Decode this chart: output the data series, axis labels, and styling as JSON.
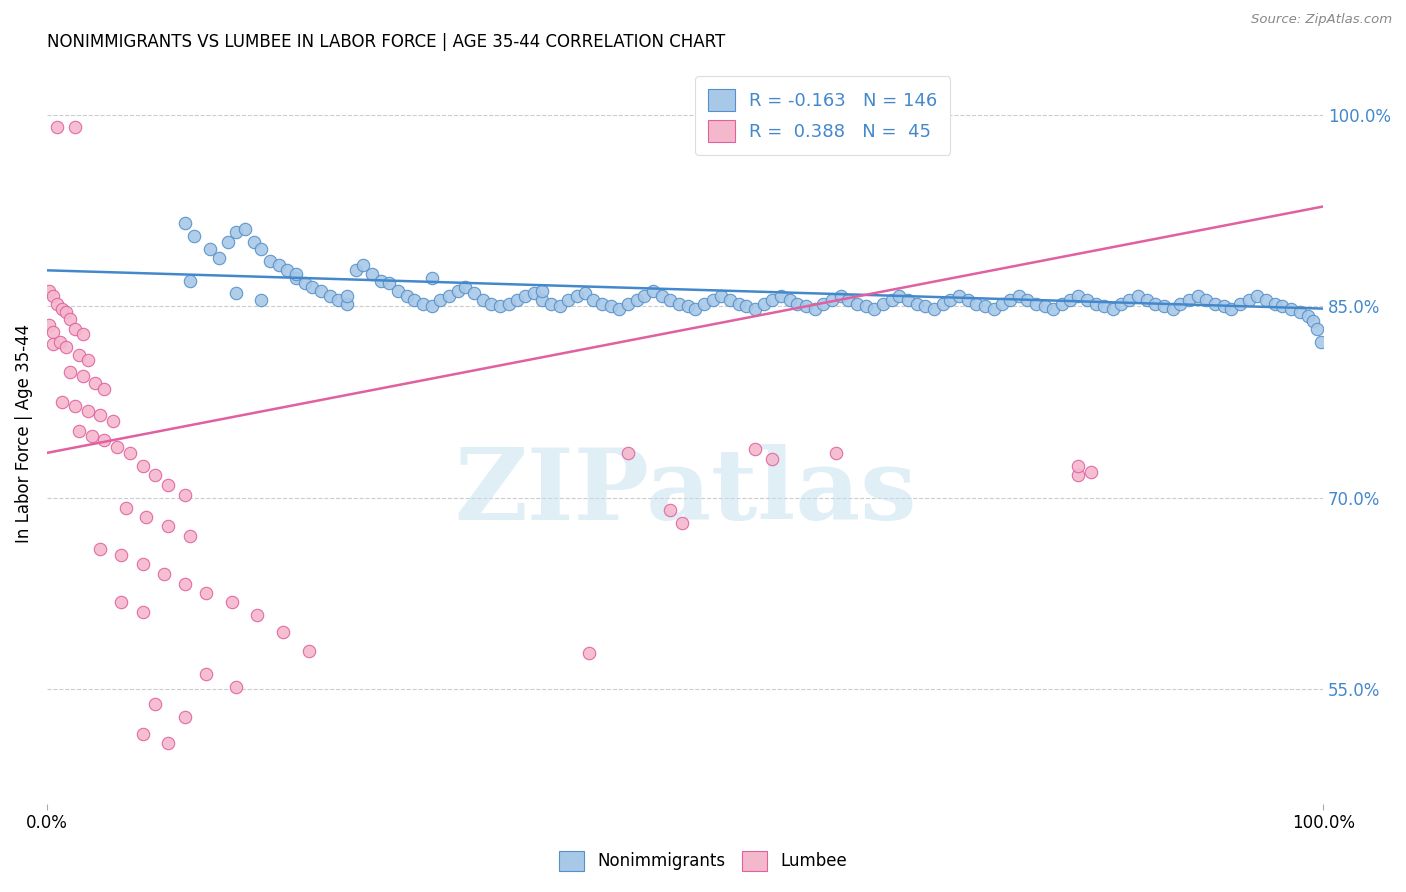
{
  "title": "NONIMMIGRANTS VS LUMBEE IN LABOR FORCE | AGE 35-44 CORRELATION CHART",
  "source": "Source: ZipAtlas.com",
  "ylabel": "In Labor Force | Age 35-44",
  "watermark": "ZIPatlas",
  "blue_R": -0.163,
  "blue_N": 146,
  "pink_R": 0.388,
  "pink_N": 45,
  "xmin": 0.0,
  "xmax": 1.0,
  "ymin": 0.46,
  "ymax": 1.04,
  "yticks": [
    0.55,
    0.7,
    0.85,
    1.0
  ],
  "ytick_labels": [
    "55.0%",
    "70.0%",
    "85.0%",
    "100.0%"
  ],
  "xtick_labels": [
    "0.0%",
    "100.0%"
  ],
  "xticks": [
    0.0,
    1.0
  ],
  "blue_line_x": [
    0.0,
    1.0
  ],
  "blue_line_y": [
    0.878,
    0.848
  ],
  "pink_line_x": [
    0.0,
    1.0
  ],
  "pink_line_y": [
    0.735,
    0.928
  ],
  "blue_color": "#a8c8e8",
  "pink_color": "#f4b8cc",
  "blue_edge_color": "#5590c8",
  "pink_edge_color": "#e060a0",
  "blue_line_color": "#4488cc",
  "pink_line_color": "#e060a0",
  "legend_label_blue": "Nonimmigrants",
  "legend_label_pink": "Lumbee",
  "blue_dots": [
    [
      0.108,
      0.915
    ],
    [
      0.115,
      0.905
    ],
    [
      0.128,
      0.895
    ],
    [
      0.135,
      0.888
    ],
    [
      0.142,
      0.9
    ],
    [
      0.148,
      0.908
    ],
    [
      0.155,
      0.91
    ],
    [
      0.162,
      0.9
    ],
    [
      0.168,
      0.895
    ],
    [
      0.175,
      0.885
    ],
    [
      0.182,
      0.882
    ],
    [
      0.188,
      0.878
    ],
    [
      0.195,
      0.872
    ],
    [
      0.202,
      0.868
    ],
    [
      0.208,
      0.865
    ],
    [
      0.215,
      0.862
    ],
    [
      0.222,
      0.858
    ],
    [
      0.228,
      0.855
    ],
    [
      0.235,
      0.852
    ],
    [
      0.242,
      0.878
    ],
    [
      0.248,
      0.882
    ],
    [
      0.255,
      0.875
    ],
    [
      0.262,
      0.87
    ],
    [
      0.268,
      0.868
    ],
    [
      0.275,
      0.862
    ],
    [
      0.282,
      0.858
    ],
    [
      0.288,
      0.855
    ],
    [
      0.295,
      0.852
    ],
    [
      0.302,
      0.85
    ],
    [
      0.308,
      0.855
    ],
    [
      0.315,
      0.858
    ],
    [
      0.322,
      0.862
    ],
    [
      0.328,
      0.865
    ],
    [
      0.335,
      0.86
    ],
    [
      0.342,
      0.855
    ],
    [
      0.348,
      0.852
    ],
    [
      0.355,
      0.85
    ],
    [
      0.362,
      0.852
    ],
    [
      0.368,
      0.855
    ],
    [
      0.375,
      0.858
    ],
    [
      0.382,
      0.86
    ],
    [
      0.388,
      0.855
    ],
    [
      0.395,
      0.852
    ],
    [
      0.402,
      0.85
    ],
    [
      0.408,
      0.855
    ],
    [
      0.415,
      0.858
    ],
    [
      0.422,
      0.86
    ],
    [
      0.428,
      0.855
    ],
    [
      0.435,
      0.852
    ],
    [
      0.442,
      0.85
    ],
    [
      0.448,
      0.848
    ],
    [
      0.455,
      0.852
    ],
    [
      0.462,
      0.855
    ],
    [
      0.468,
      0.858
    ],
    [
      0.475,
      0.862
    ],
    [
      0.482,
      0.858
    ],
    [
      0.488,
      0.855
    ],
    [
      0.495,
      0.852
    ],
    [
      0.502,
      0.85
    ],
    [
      0.508,
      0.848
    ],
    [
      0.515,
      0.852
    ],
    [
      0.522,
      0.855
    ],
    [
      0.528,
      0.858
    ],
    [
      0.535,
      0.855
    ],
    [
      0.542,
      0.852
    ],
    [
      0.548,
      0.85
    ],
    [
      0.555,
      0.848
    ],
    [
      0.562,
      0.852
    ],
    [
      0.568,
      0.855
    ],
    [
      0.575,
      0.858
    ],
    [
      0.582,
      0.855
    ],
    [
      0.588,
      0.852
    ],
    [
      0.595,
      0.85
    ],
    [
      0.602,
      0.848
    ],
    [
      0.608,
      0.852
    ],
    [
      0.615,
      0.855
    ],
    [
      0.622,
      0.858
    ],
    [
      0.628,
      0.855
    ],
    [
      0.635,
      0.852
    ],
    [
      0.642,
      0.85
    ],
    [
      0.648,
      0.848
    ],
    [
      0.655,
      0.852
    ],
    [
      0.662,
      0.855
    ],
    [
      0.668,
      0.858
    ],
    [
      0.675,
      0.855
    ],
    [
      0.682,
      0.852
    ],
    [
      0.688,
      0.85
    ],
    [
      0.695,
      0.848
    ],
    [
      0.702,
      0.852
    ],
    [
      0.708,
      0.855
    ],
    [
      0.715,
      0.858
    ],
    [
      0.722,
      0.855
    ],
    [
      0.728,
      0.852
    ],
    [
      0.735,
      0.85
    ],
    [
      0.742,
      0.848
    ],
    [
      0.748,
      0.852
    ],
    [
      0.755,
      0.855
    ],
    [
      0.762,
      0.858
    ],
    [
      0.768,
      0.855
    ],
    [
      0.775,
      0.852
    ],
    [
      0.782,
      0.85
    ],
    [
      0.788,
      0.848
    ],
    [
      0.795,
      0.852
    ],
    [
      0.802,
      0.855
    ],
    [
      0.808,
      0.858
    ],
    [
      0.815,
      0.855
    ],
    [
      0.822,
      0.852
    ],
    [
      0.828,
      0.85
    ],
    [
      0.835,
      0.848
    ],
    [
      0.842,
      0.852
    ],
    [
      0.848,
      0.855
    ],
    [
      0.855,
      0.858
    ],
    [
      0.862,
      0.855
    ],
    [
      0.868,
      0.852
    ],
    [
      0.875,
      0.85
    ],
    [
      0.882,
      0.848
    ],
    [
      0.888,
      0.852
    ],
    [
      0.895,
      0.855
    ],
    [
      0.902,
      0.858
    ],
    [
      0.908,
      0.855
    ],
    [
      0.915,
      0.852
    ],
    [
      0.922,
      0.85
    ],
    [
      0.928,
      0.848
    ],
    [
      0.935,
      0.852
    ],
    [
      0.942,
      0.855
    ],
    [
      0.948,
      0.858
    ],
    [
      0.955,
      0.855
    ],
    [
      0.962,
      0.852
    ],
    [
      0.968,
      0.85
    ],
    [
      0.975,
      0.848
    ],
    [
      0.982,
      0.845
    ],
    [
      0.988,
      0.842
    ],
    [
      0.992,
      0.838
    ],
    [
      0.995,
      0.832
    ],
    [
      0.998,
      0.822
    ],
    [
      0.112,
      0.87
    ],
    [
      0.148,
      0.86
    ],
    [
      0.168,
      0.855
    ],
    [
      0.195,
      0.875
    ],
    [
      0.235,
      0.858
    ],
    [
      0.302,
      0.872
    ],
    [
      0.388,
      0.862
    ]
  ],
  "pink_dots": [
    [
      0.008,
      0.99
    ],
    [
      0.022,
      0.99
    ],
    [
      0.002,
      0.862
    ],
    [
      0.005,
      0.858
    ],
    [
      0.008,
      0.852
    ],
    [
      0.012,
      0.848
    ],
    [
      0.015,
      0.845
    ],
    [
      0.018,
      0.84
    ],
    [
      0.002,
      0.835
    ],
    [
      0.005,
      0.83
    ],
    [
      0.022,
      0.832
    ],
    [
      0.028,
      0.828
    ],
    [
      0.005,
      0.82
    ],
    [
      0.01,
      0.822
    ],
    [
      0.015,
      0.818
    ],
    [
      0.025,
      0.812
    ],
    [
      0.032,
      0.808
    ],
    [
      0.018,
      0.798
    ],
    [
      0.028,
      0.795
    ],
    [
      0.038,
      0.79
    ],
    [
      0.045,
      0.785
    ],
    [
      0.012,
      0.775
    ],
    [
      0.022,
      0.772
    ],
    [
      0.032,
      0.768
    ],
    [
      0.042,
      0.765
    ],
    [
      0.052,
      0.76
    ],
    [
      0.025,
      0.752
    ],
    [
      0.035,
      0.748
    ],
    [
      0.045,
      0.745
    ],
    [
      0.055,
      0.74
    ],
    [
      0.065,
      0.735
    ],
    [
      0.075,
      0.725
    ],
    [
      0.085,
      0.718
    ],
    [
      0.095,
      0.71
    ],
    [
      0.108,
      0.702
    ],
    [
      0.062,
      0.692
    ],
    [
      0.078,
      0.685
    ],
    [
      0.095,
      0.678
    ],
    [
      0.112,
      0.67
    ],
    [
      0.042,
      0.66
    ],
    [
      0.058,
      0.655
    ],
    [
      0.075,
      0.648
    ],
    [
      0.092,
      0.64
    ],
    [
      0.108,
      0.632
    ],
    [
      0.058,
      0.618
    ],
    [
      0.075,
      0.61
    ],
    [
      0.125,
      0.625
    ],
    [
      0.145,
      0.618
    ],
    [
      0.165,
      0.608
    ],
    [
      0.185,
      0.595
    ],
    [
      0.205,
      0.58
    ],
    [
      0.125,
      0.562
    ],
    [
      0.148,
      0.552
    ],
    [
      0.085,
      0.538
    ],
    [
      0.108,
      0.528
    ],
    [
      0.075,
      0.515
    ],
    [
      0.095,
      0.508
    ],
    [
      0.425,
      0.578
    ],
    [
      0.455,
      0.735
    ],
    [
      0.488,
      0.69
    ],
    [
      0.498,
      0.68
    ],
    [
      0.555,
      0.738
    ],
    [
      0.568,
      0.73
    ],
    [
      0.618,
      0.735
    ],
    [
      0.808,
      0.718
    ],
    [
      0.808,
      0.725
    ],
    [
      0.818,
      0.72
    ]
  ]
}
